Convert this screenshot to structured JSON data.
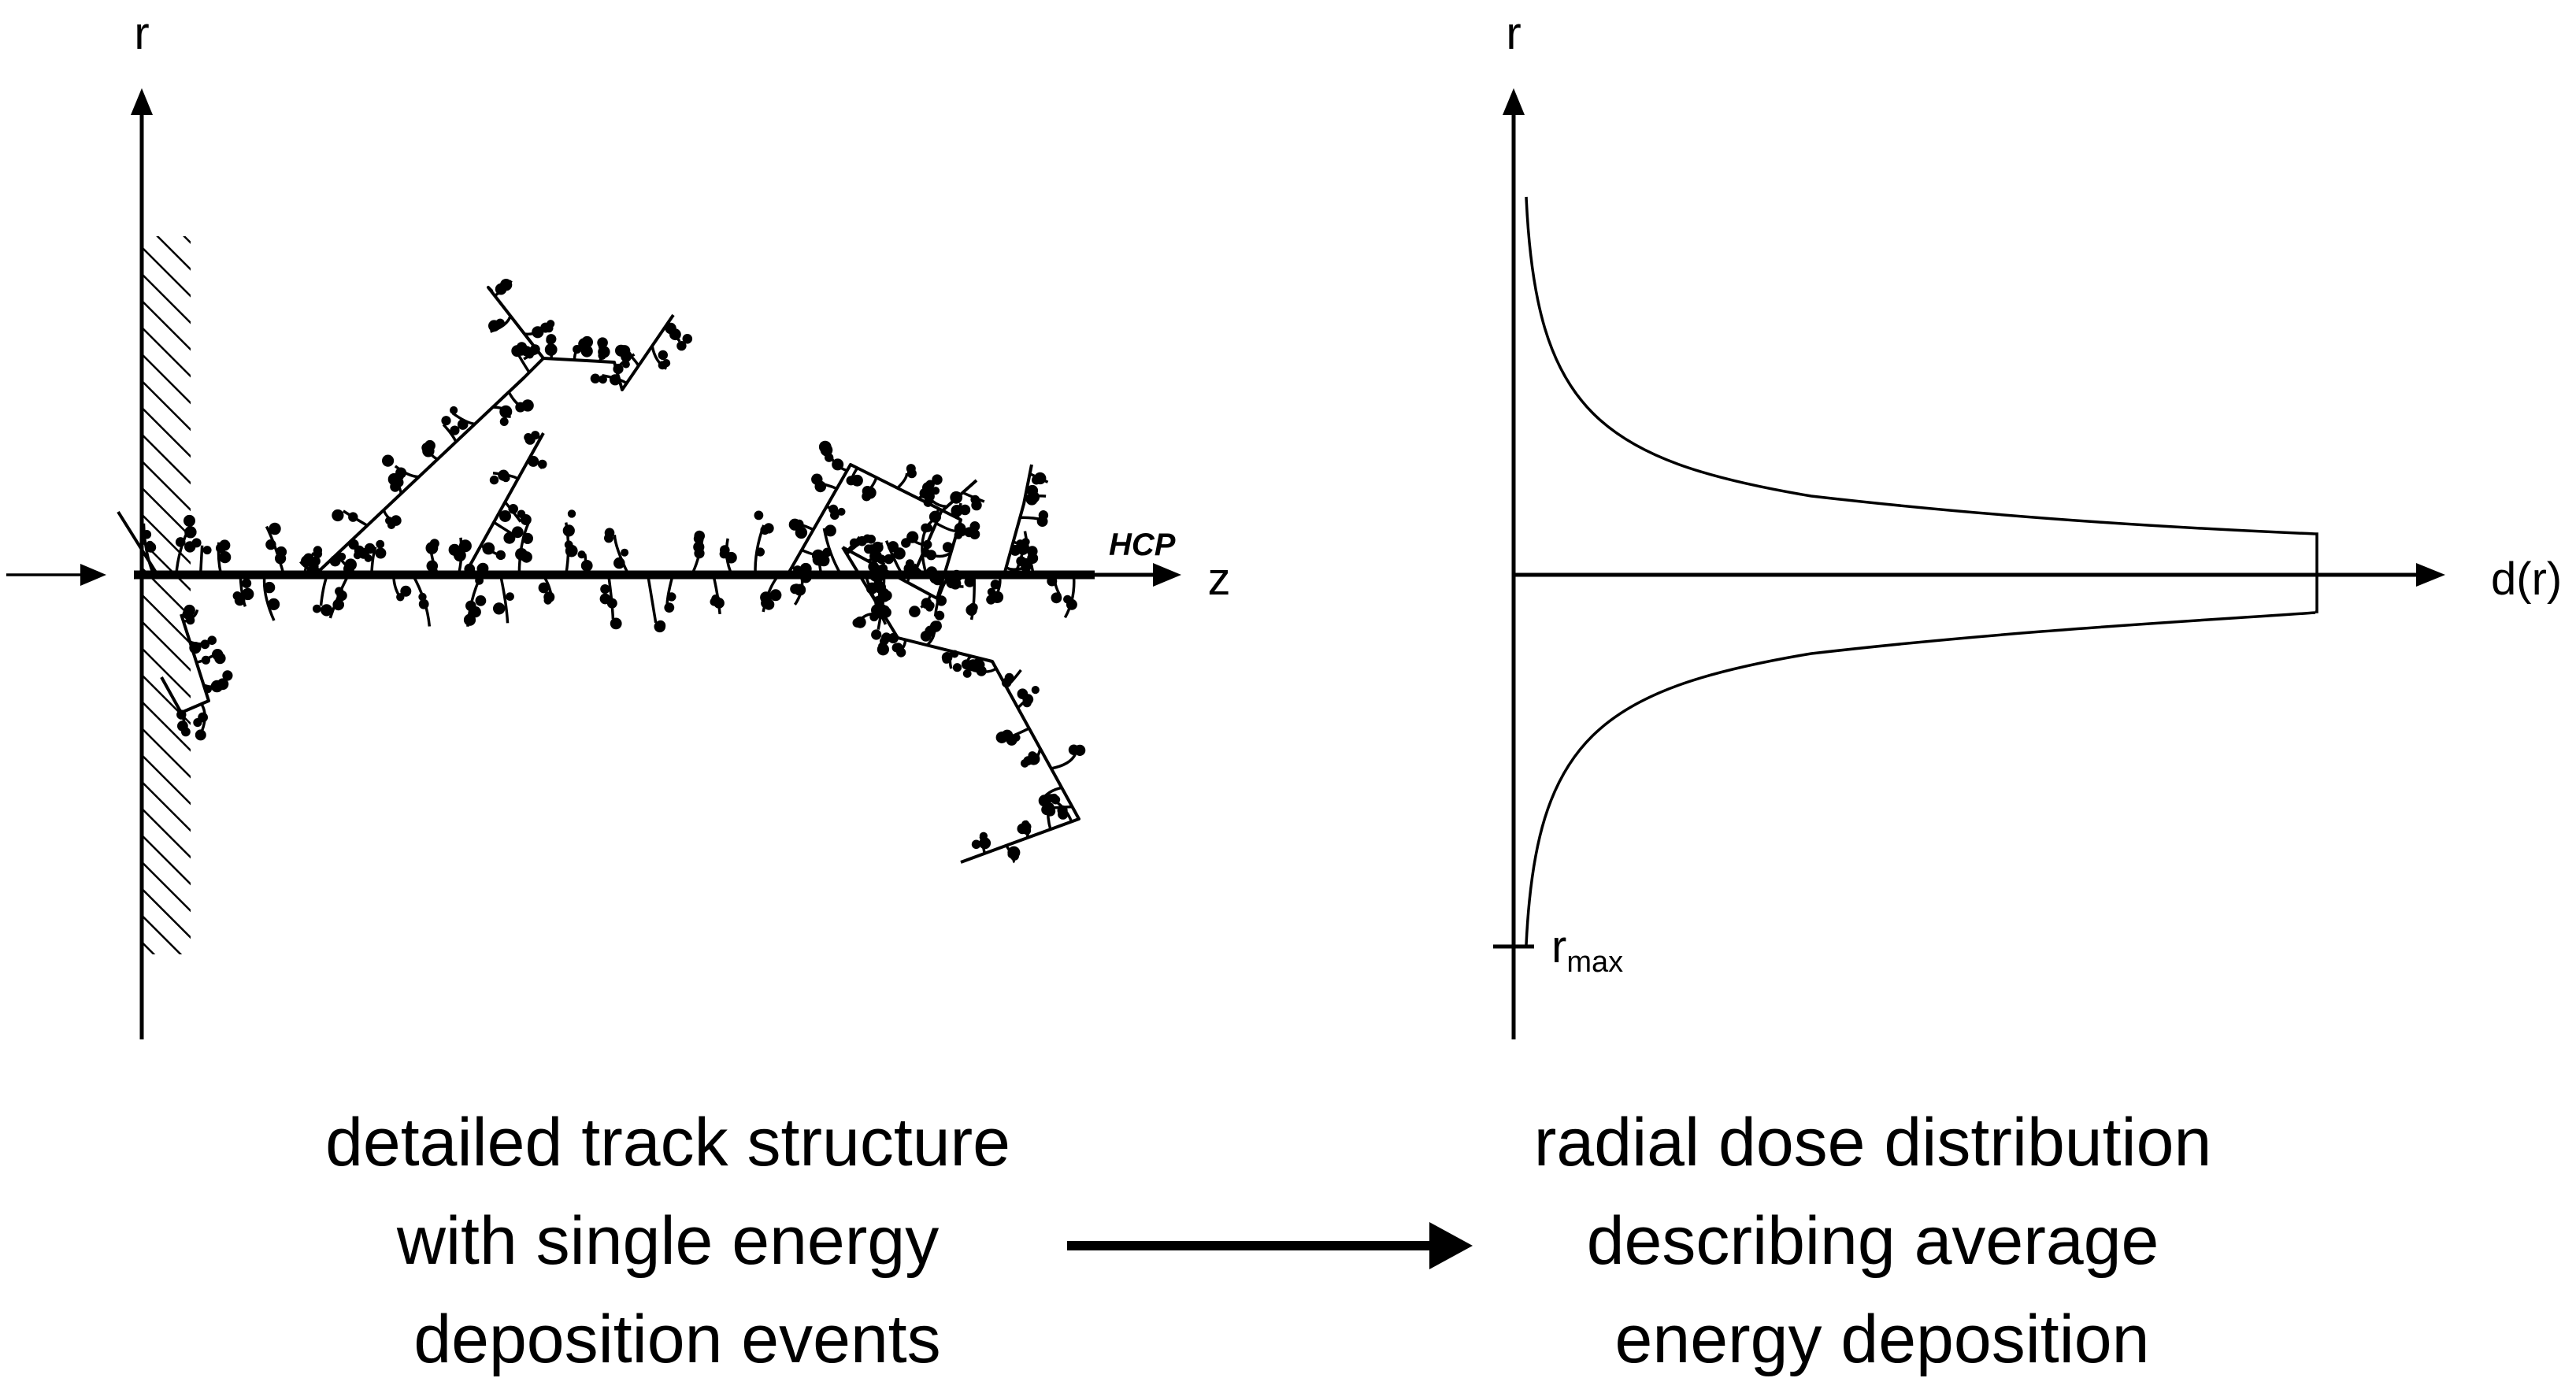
{
  "left_panel": {
    "r_axis_label": "r",
    "z_axis_label": "z",
    "beam_label": "HCP",
    "caption": [
      "detailed track structure",
      "with single energy",
      "deposition events"
    ]
  },
  "right_panel": {
    "r_axis_label": "r",
    "d_axis_label": "d(r)",
    "rmax_label": "r",
    "rmax_subscript": "max",
    "caption": [
      "radial dose distribution",
      "describing average",
      "energy deposition"
    ]
  },
  "colors": {
    "ink": "#000000",
    "background": "#ffffff"
  },
  "connector": "arrow-right"
}
